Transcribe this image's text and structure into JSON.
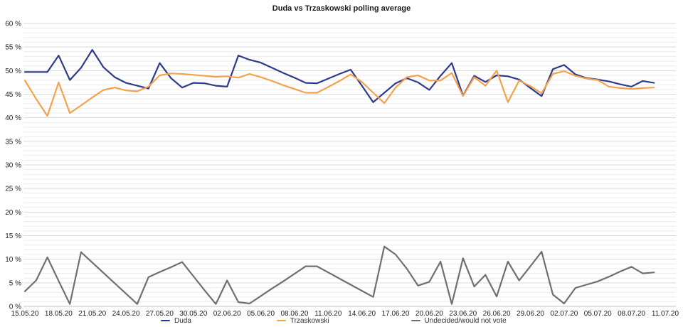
{
  "header": {
    "title": "Duda vs Trzaskowski polling average"
  },
  "chart_data": {
    "type": "line",
    "title": "Duda vs Trzaskowski polling average",
    "xlabel": "",
    "ylabel": "",
    "ylim": [
      0,
      60
    ],
    "grid": {
      "minor_step_pct": 1,
      "major_step_pct": 5,
      "vertical_gridlines": false
    },
    "legend_position": "bottom",
    "y_tick_labels": [
      "0 %",
      "5 %",
      "10 %",
      "15 %",
      "20 %",
      "25 %",
      "30 %",
      "35 %",
      "40 %",
      "45 %",
      "50 %",
      "55 %",
      "60 %"
    ],
    "y_tick_values": [
      0,
      5,
      10,
      15,
      20,
      25,
      30,
      35,
      40,
      45,
      50,
      55,
      60
    ],
    "x_tick_labels": [
      "15.05.20",
      "18.05.20",
      "21.05.20",
      "24.05.20",
      "27.05.20",
      "30.05.20",
      "02.06.20",
      "05.06.20",
      "08.06.20",
      "11.06.20",
      "14.06.20",
      "17.06.20",
      "20.06.20",
      "23.06.20",
      "26.06.20",
      "29.06.20",
      "02.07.20",
      "05.07.20",
      "08.07.20",
      "11.07.20"
    ],
    "days_per_tick": 3,
    "date_range": "daily polling average points from 15.05.20 to 10.07.20, x-axis extends to 11.07.20",
    "series": [
      {
        "name": "Duda",
        "color": "#2e3a8c",
        "values": [
          49.7,
          49.7,
          49.7,
          53.2,
          48.0,
          50.6,
          54.4,
          50.7,
          48.6,
          47.4,
          46.8,
          46.2,
          51.6,
          48.4,
          46.4,
          47.4,
          47.3,
          46.8,
          46.6,
          53.2,
          52.3,
          51.7,
          50.6,
          49.5,
          48.5,
          47.4,
          47.3,
          48.3,
          49.3,
          50.2,
          46.8,
          43.3,
          45.3,
          47.3,
          48.4,
          47.5,
          45.9,
          48.9,
          51.6,
          44.7,
          48.9,
          47.6,
          49.0,
          48.8,
          48.1,
          46.3,
          44.6,
          50.3,
          51.2,
          49.2,
          48.4,
          48.1,
          47.7,
          47.1,
          46.6,
          47.8,
          47.4
        ]
      },
      {
        "name": "Trzaskowski",
        "color": "#f4a14b",
        "values": [
          47.9,
          44.0,
          40.4,
          47.5,
          41.0,
          42.6,
          44.3,
          45.9,
          46.4,
          45.8,
          45.6,
          46.6,
          49.0,
          49.4,
          49.3,
          49.1,
          48.9,
          48.7,
          48.8,
          48.5,
          49.3,
          48.6,
          47.8,
          46.9,
          46.1,
          45.3,
          45.3,
          46.5,
          47.8,
          49.2,
          47.6,
          45.3,
          43.1,
          46.4,
          48.6,
          49.0,
          47.9,
          47.9,
          49.5,
          44.6,
          48.6,
          46.8,
          50.0,
          43.3,
          47.9,
          46.7,
          45.2,
          49.3,
          49.9,
          48.9,
          48.3,
          48.0,
          46.6,
          46.3,
          46.1,
          46.3,
          46.4
        ]
      },
      {
        "name": "Undecided/would not vote",
        "color": "#6f6f6f",
        "values": [
          3.2,
          5.5,
          10.4,
          5.4,
          0.5,
          11.5,
          9.3,
          7.1,
          4.9,
          2.7,
          0.5,
          6.2,
          7.3,
          8.3,
          9.4,
          6.4,
          3.4,
          0.5,
          5.5,
          0.9,
          0.6,
          2.2,
          3.8,
          5.3,
          6.9,
          8.5,
          8.5,
          7.2,
          5.9,
          4.6,
          3.3,
          2.0,
          12.7,
          11.0,
          8.0,
          4.4,
          5.2,
          9.5,
          0.5,
          10.2,
          4.2,
          6.7,
          2.1,
          9.5,
          5.5,
          8.5,
          11.6,
          2.5,
          0.6,
          3.9,
          4.6,
          5.3,
          6.3,
          7.4,
          8.4,
          7.0,
          7.2
        ]
      }
    ]
  },
  "colors": {
    "background": "#ffffff",
    "minor_grid": "#ececec",
    "major_grid": "#d9d9d9",
    "zero_axis": "#c4c4c4",
    "tick_text": "#222222",
    "legend_text": "#333333"
  }
}
